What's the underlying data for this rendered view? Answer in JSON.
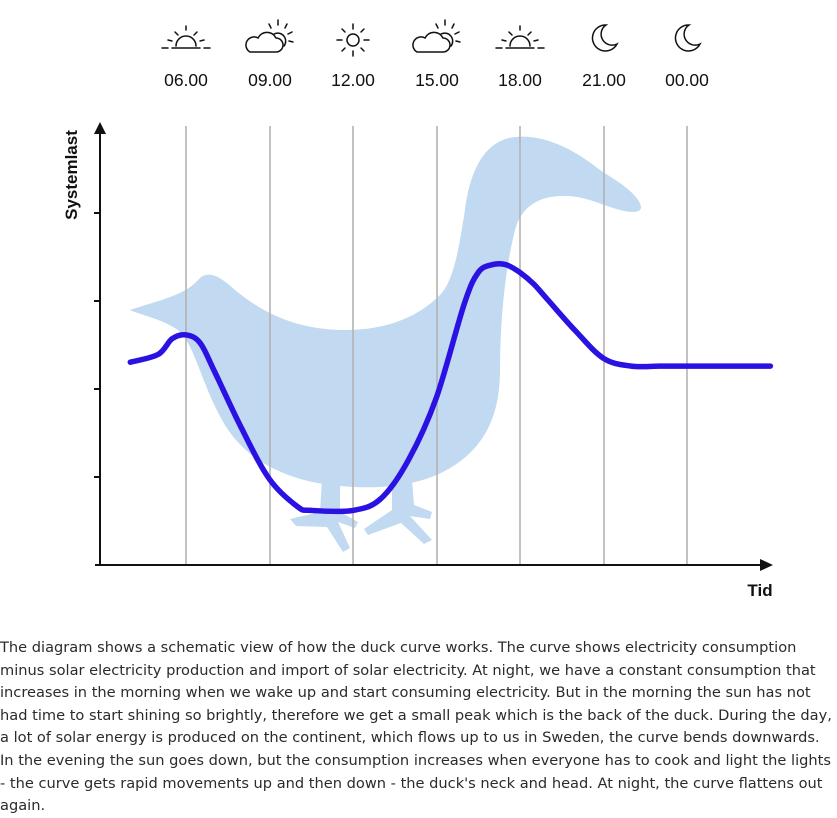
{
  "chart_data": {
    "type": "line",
    "ylabel": "Systemlast",
    "xlabel": "Tid",
    "times": [
      "06.00",
      "09.00",
      "12.00",
      "15.00",
      "18.00",
      "21.00",
      "00.00"
    ],
    "time_icons": [
      "sunrise-icon",
      "partly-cloudy-icon",
      "sun-icon",
      "partly-cloudy-icon",
      "sunset-icon",
      "moon-icon",
      "moon-icon"
    ],
    "series": [
      {
        "x": [
          "04.00",
          "05.00",
          "05.30",
          "06.00",
          "06.30",
          "07.00",
          "08.00",
          "09.00",
          "10.00",
          "10.30",
          "12.00",
          "13.00",
          "14.00",
          "15.00",
          "16.00",
          "16.30",
          "17.00",
          "17.30",
          "18.00",
          "18.30",
          "19.00",
          "20.00",
          "21.00",
          "22.00",
          "23.00",
          "23.30",
          "00.00",
          "01.00",
          "02.00",
          "03.00"
        ],
        "y": [
          5.2,
          5.4,
          5.8,
          5.9,
          5.7,
          5.0,
          3.5,
          2.2,
          1.5,
          1.4,
          1.4,
          1.7,
          2.7,
          4.3,
          6.7,
          7.5,
          7.7,
          7.7,
          7.5,
          7.2,
          6.8,
          6.0,
          5.3,
          5.1,
          5.1,
          5.1,
          5.1,
          5.1,
          5.1,
          5.1
        ]
      }
    ],
    "ylim": [
      0,
      10
    ],
    "colors": {
      "curve": "#2a12e3",
      "duck": "#c1d9f1",
      "axis": "#111111",
      "gridline": "#b3b3b3"
    }
  },
  "caption": "The diagram shows a schematic view of how the duck curve works. The curve shows electricity consumption minus solar electricity production and import of solar electricity. At night, we have a constant consumption that increases in the morning when we wake up and start consuming electricity. But in the morning the sun has not had time to start shining so brightly, therefore we get a small peak which is the back of the duck. During the day, a lot of solar energy is produced on the continent, which flows up to us in Sweden, the curve bends downwards. In the evening the sun goes down, but the consumption increases when everyone has to cook and light the lights - the curve gets rapid movements up and then down - the duck's neck and head. At night, the curve flattens out again."
}
